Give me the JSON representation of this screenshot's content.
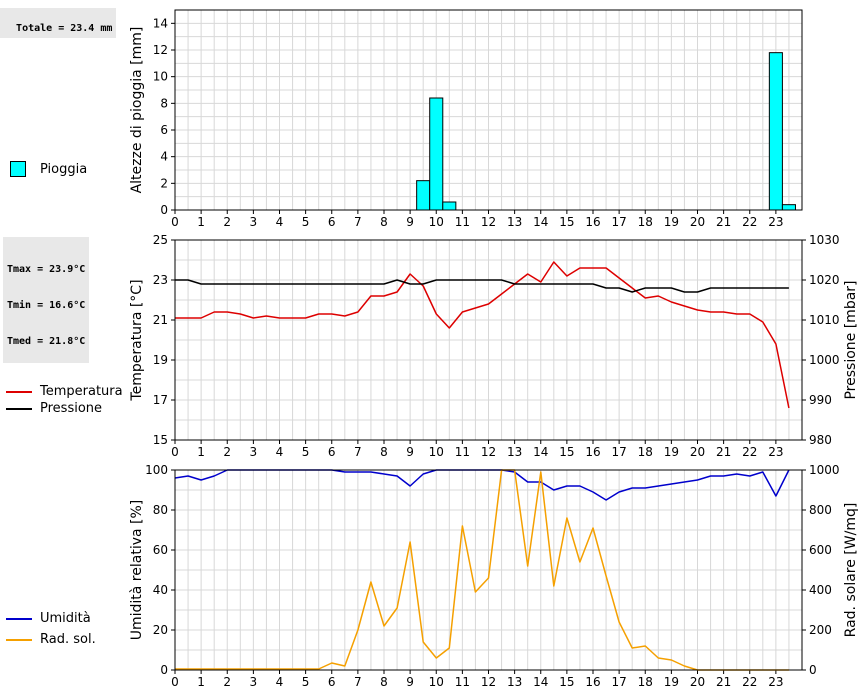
{
  "info": {
    "rain_total": "Totale = 23.4 mm",
    "tmax": "Tmax = 23.9°C",
    "tmin": "Tmin = 16.6°C",
    "tmed": "Tmed = 21.8°C"
  },
  "legend": {
    "rain": "Pioggia",
    "temperature": "Temperatura",
    "pressure": "Pressione",
    "humidity": "Umidità",
    "radiation": "Rad. sol."
  },
  "colors": {
    "rain": "#00ffff",
    "temperature": "#dd0000",
    "pressure": "#000000",
    "humidity": "#0000cc",
    "radiation": "#f5a000",
    "grid": "#d8d8d8"
  },
  "chart_data": [
    {
      "type": "bar",
      "title": "",
      "xlabel": "",
      "ylabel": "Altezze di pioggia [mm]",
      "xlim": [
        0,
        24
      ],
      "ylim": [
        0,
        15
      ],
      "x_ticks": [
        "0",
        "1",
        "2",
        "3",
        "4",
        "5",
        "6",
        "7",
        "8",
        "9",
        "10",
        "11",
        "12",
        "13",
        "14",
        "15",
        "16",
        "17",
        "18",
        "19",
        "20",
        "21",
        "22",
        "23"
      ],
      "y_ticks": [
        "0",
        "2",
        "4",
        "6",
        "8",
        "10",
        "12",
        "14"
      ],
      "bar_width": 0.5,
      "series": [
        {
          "name": "Pioggia",
          "points": [
            [
              9.5,
              2.2
            ],
            [
              10.0,
              8.4
            ],
            [
              10.5,
              0.6
            ],
            [
              23.0,
              11.8
            ],
            [
              23.5,
              0.4
            ]
          ]
        }
      ]
    },
    {
      "type": "line",
      "xlim": [
        0,
        24
      ],
      "x_ticks": [
        "0",
        "1",
        "2",
        "3",
        "4",
        "5",
        "6",
        "7",
        "8",
        "9",
        "10",
        "11",
        "12",
        "13",
        "14",
        "15",
        "16",
        "17",
        "18",
        "19",
        "20",
        "21",
        "22",
        "23"
      ],
      "ylabel": "Temperatura [°C]",
      "ylim": [
        15,
        25
      ],
      "y_ticks": [
        "15",
        "17",
        "19",
        "21",
        "23",
        "25"
      ],
      "y2label": "Pressione [mbar]",
      "y2lim": [
        980,
        1030
      ],
      "y2_ticks": [
        "980",
        "990",
        "1000",
        "1010",
        "1020",
        "1030"
      ],
      "series": [
        {
          "name": "Temperatura",
          "axis": "left",
          "points": [
            [
              0,
              21.1
            ],
            [
              0.5,
              21.1
            ],
            [
              1,
              21.1
            ],
            [
              1.5,
              21.4
            ],
            [
              2,
              21.4
            ],
            [
              2.5,
              21.3
            ],
            [
              3,
              21.1
            ],
            [
              3.5,
              21.2
            ],
            [
              4,
              21.1
            ],
            [
              4.5,
              21.1
            ],
            [
              5,
              21.1
            ],
            [
              5.5,
              21.3
            ],
            [
              6,
              21.3
            ],
            [
              6.5,
              21.2
            ],
            [
              7,
              21.4
            ],
            [
              7.5,
              22.2
            ],
            [
              8,
              22.2
            ],
            [
              8.5,
              22.4
            ],
            [
              9,
              23.3
            ],
            [
              9.5,
              22.7
            ],
            [
              10,
              21.3
            ],
            [
              10.5,
              20.6
            ],
            [
              11,
              21.4
            ],
            [
              11.5,
              21.6
            ],
            [
              12,
              21.8
            ],
            [
              12.5,
              22.3
            ],
            [
              13,
              22.8
            ],
            [
              13.5,
              23.3
            ],
            [
              14,
              22.9
            ],
            [
              14.5,
              23.9
            ],
            [
              15,
              23.2
            ],
            [
              15.5,
              23.6
            ],
            [
              16,
              23.6
            ],
            [
              16.5,
              23.6
            ],
            [
              17,
              23.1
            ],
            [
              17.5,
              22.6
            ],
            [
              18,
              22.1
            ],
            [
              18.5,
              22.2
            ],
            [
              19,
              21.9
            ],
            [
              19.5,
              21.7
            ],
            [
              20,
              21.5
            ],
            [
              20.5,
              21.4
            ],
            [
              21,
              21.4
            ],
            [
              21.5,
              21.3
            ],
            [
              22,
              21.3
            ],
            [
              22.5,
              20.9
            ],
            [
              23,
              19.8
            ],
            [
              23.5,
              16.6
            ]
          ]
        },
        {
          "name": "Pressione",
          "axis": "right",
          "points": [
            [
              0,
              1020
            ],
            [
              0.5,
              1020
            ],
            [
              1,
              1019
            ],
            [
              1.5,
              1019
            ],
            [
              2,
              1019
            ],
            [
              3,
              1019
            ],
            [
              4,
              1019
            ],
            [
              5,
              1019
            ],
            [
              6,
              1019
            ],
            [
              7,
              1019
            ],
            [
              8,
              1019
            ],
            [
              8.5,
              1020
            ],
            [
              9,
              1019
            ],
            [
              9.5,
              1019
            ],
            [
              10,
              1020
            ],
            [
              11,
              1020
            ],
            [
              12,
              1020
            ],
            [
              12.5,
              1020
            ],
            [
              13,
              1019
            ],
            [
              14,
              1019
            ],
            [
              15,
              1019
            ],
            [
              16,
              1019
            ],
            [
              16.5,
              1018
            ],
            [
              17,
              1018
            ],
            [
              17.5,
              1017
            ],
            [
              18,
              1018
            ],
            [
              19,
              1018
            ],
            [
              19.5,
              1017
            ],
            [
              20,
              1017
            ],
            [
              20.5,
              1018
            ],
            [
              21,
              1018
            ],
            [
              22,
              1018
            ],
            [
              23,
              1018
            ],
            [
              23.5,
              1018
            ]
          ]
        }
      ]
    },
    {
      "type": "line",
      "xlim": [
        0,
        24
      ],
      "x_ticks": [
        "0",
        "1",
        "2",
        "3",
        "4",
        "5",
        "6",
        "7",
        "8",
        "9",
        "10",
        "11",
        "12",
        "13",
        "14",
        "15",
        "16",
        "17",
        "18",
        "19",
        "20",
        "21",
        "22",
        "23"
      ],
      "ylabel": "Umidità relativa [%]",
      "ylim": [
        0,
        100
      ],
      "y_ticks": [
        "0",
        "20",
        "40",
        "60",
        "80",
        "100"
      ],
      "y2label": "Rad. solare [W/mq]",
      "y2lim": [
        0,
        1000
      ],
      "y2_ticks": [
        "0",
        "200",
        "400",
        "600",
        "800",
        "1000"
      ],
      "series": [
        {
          "name": "Umidità",
          "axis": "left",
          "points": [
            [
              0,
              96
            ],
            [
              0.5,
              97
            ],
            [
              1,
              95
            ],
            [
              1.5,
              97
            ],
            [
              2,
              100
            ],
            [
              2.5,
              100
            ],
            [
              3,
              100
            ],
            [
              4,
              100
            ],
            [
              5,
              100
            ],
            [
              6,
              100
            ],
            [
              6.5,
              99
            ],
            [
              7,
              99
            ],
            [
              7.5,
              99
            ],
            [
              8,
              98
            ],
            [
              8.5,
              97
            ],
            [
              9,
              92
            ],
            [
              9.5,
              98
            ],
            [
              10,
              100
            ],
            [
              11,
              100
            ],
            [
              12,
              100
            ],
            [
              12.5,
              100
            ],
            [
              13,
              99
            ],
            [
              13.5,
              94
            ],
            [
              14,
              94
            ],
            [
              14.5,
              90
            ],
            [
              15,
              92
            ],
            [
              15.5,
              92
            ],
            [
              16,
              89
            ],
            [
              16.5,
              85
            ],
            [
              17,
              89
            ],
            [
              17.5,
              91
            ],
            [
              18,
              91
            ],
            [
              18.5,
              92
            ],
            [
              19,
              93
            ],
            [
              19.5,
              94
            ],
            [
              20,
              95
            ],
            [
              20.5,
              97
            ],
            [
              21,
              97
            ],
            [
              21.5,
              98
            ],
            [
              22,
              97
            ],
            [
              22.5,
              99
            ],
            [
              23,
              87
            ],
            [
              23.5,
              100
            ]
          ]
        },
        {
          "name": "Rad. sol.",
          "axis": "right",
          "points": [
            [
              0,
              5
            ],
            [
              0.5,
              5
            ],
            [
              1,
              5
            ],
            [
              2,
              5
            ],
            [
              3,
              5
            ],
            [
              4,
              5
            ],
            [
              5,
              5
            ],
            [
              5.5,
              5
            ],
            [
              6,
              35
            ],
            [
              6.5,
              20
            ],
            [
              7,
              200
            ],
            [
              7.5,
              440
            ],
            [
              8,
              220
            ],
            [
              8.5,
              310
            ],
            [
              9,
              640
            ],
            [
              9.5,
              140
            ],
            [
              10,
              60
            ],
            [
              10.5,
              110
            ],
            [
              11,
              720
            ],
            [
              11.5,
              390
            ],
            [
              12,
              460
            ],
            [
              12.5,
              1000
            ],
            [
              13,
              1000
            ],
            [
              13.5,
              520
            ],
            [
              14,
              990
            ],
            [
              14.5,
              420
            ],
            [
              15,
              760
            ],
            [
              15.5,
              540
            ],
            [
              16,
              710
            ],
            [
              16.5,
              470
            ],
            [
              17,
              240
            ],
            [
              17.5,
              110
            ],
            [
              18,
              120
            ],
            [
              18.5,
              60
            ],
            [
              19,
              50
            ],
            [
              19.5,
              20
            ],
            [
              20,
              0
            ],
            [
              21,
              0
            ],
            [
              22,
              0
            ],
            [
              23,
              0
            ],
            [
              23.5,
              0
            ]
          ]
        }
      ]
    }
  ]
}
